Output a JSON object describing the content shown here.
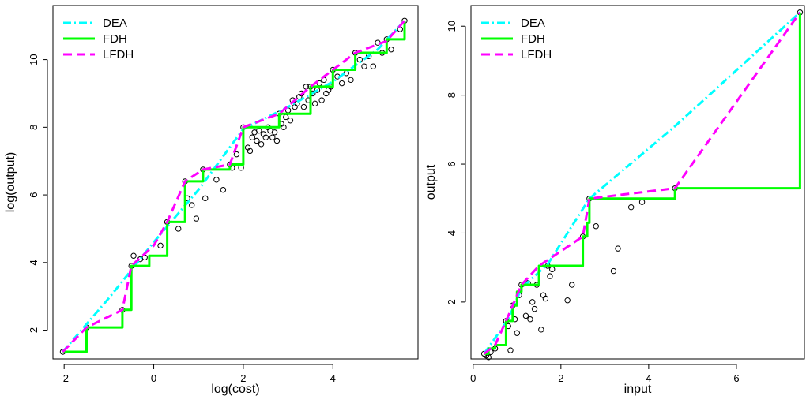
{
  "chart_data": [
    {
      "type": "line",
      "xlabel": "log(cost)",
      "ylabel": "log(output)",
      "xlim": [
        -2.25,
        5.9
      ],
      "ylim": [
        1.15,
        11.6
      ],
      "xticks": [
        "-2",
        "0",
        "2",
        "4"
      ],
      "yticks": [
        "2",
        "4",
        "6",
        "8",
        "10"
      ],
      "xtick_values": [
        -2,
        0,
        2,
        4
      ],
      "ytick_values": [
        2,
        4,
        6,
        8,
        10
      ],
      "legend": {
        "position": "top-left",
        "entries": [
          "DEA",
          "FDH",
          "LFDH"
        ]
      },
      "series": [
        {
          "name": "DEA",
          "color": "#00FFFF",
          "dash": "dotdash",
          "x": [
            -2.03,
            -1.0,
            0.0,
            1.0,
            2.0,
            3.0,
            4.0,
            5.0,
            5.6
          ],
          "y": [
            1.36,
            2.95,
            4.6,
            6.15,
            7.95,
            8.6,
            9.35,
            10.3,
            11.15
          ]
        },
        {
          "name": "FDH",
          "color": "#00FF00",
          "dash": "solid",
          "x": [
            -2.03,
            -1.5,
            -1.5,
            -0.7,
            -0.7,
            -0.5,
            -0.5,
            -0.1,
            -0.1,
            0.3,
            0.3,
            0.7,
            0.7,
            1.1,
            1.1,
            1.7,
            1.7,
            2.0,
            2.0,
            2.8,
            2.8,
            3.5,
            3.5,
            4.0,
            4.0,
            4.5,
            4.5,
            5.2,
            5.2,
            5.6,
            5.6
          ],
          "y": [
            1.36,
            1.36,
            2.08,
            2.08,
            2.6,
            2.6,
            3.9,
            3.9,
            4.2,
            4.2,
            5.2,
            5.2,
            6.4,
            6.4,
            6.75,
            6.75,
            6.9,
            6.9,
            8.0,
            8.0,
            8.4,
            8.4,
            9.2,
            9.2,
            9.7,
            9.7,
            10.2,
            10.2,
            10.6,
            10.6,
            11.15
          ]
        },
        {
          "name": "LFDH",
          "color": "#FF00FF",
          "dash": "dashed",
          "x": [
            -2.03,
            -1.5,
            -0.7,
            -0.5,
            0.0,
            0.3,
            0.7,
            1.1,
            1.7,
            2.0,
            2.8,
            3.5,
            4.0,
            4.5,
            5.2,
            5.6
          ],
          "y": [
            1.36,
            2.08,
            2.6,
            3.9,
            4.5,
            5.2,
            6.4,
            6.75,
            6.9,
            8.0,
            8.4,
            9.2,
            9.7,
            10.2,
            10.55,
            11.15
          ]
        }
      ],
      "points": {
        "x": [
          -2.03,
          -1.5,
          -0.7,
          -0.5,
          -0.45,
          -0.3,
          -0.2,
          0.15,
          0.3,
          0.55,
          0.7,
          0.75,
          0.85,
          0.95,
          1.1,
          1.15,
          1.4,
          1.55,
          1.7,
          1.75,
          1.85,
          1.95,
          2.0,
          2.1,
          2.15,
          2.2,
          2.25,
          2.3,
          2.35,
          2.4,
          2.45,
          2.5,
          2.55,
          2.6,
          2.65,
          2.7,
          2.75,
          2.8,
          2.85,
          2.9,
          2.95,
          3.0,
          3.05,
          3.1,
          3.15,
          3.2,
          3.25,
          3.3,
          3.35,
          3.4,
          3.45,
          3.5,
          3.55,
          3.6,
          3.65,
          3.7,
          3.75,
          3.8,
          3.85,
          3.9,
          3.95,
          4.0,
          4.1,
          4.2,
          4.3,
          4.4,
          4.5,
          4.6,
          4.7,
          4.8,
          4.9,
          5.0,
          5.1,
          5.2,
          5.3,
          5.5,
          5.6
        ],
        "y": [
          1.36,
          2.08,
          2.6,
          3.9,
          4.2,
          4.1,
          4.15,
          4.5,
          5.2,
          5.0,
          6.4,
          5.9,
          5.7,
          5.3,
          6.75,
          5.9,
          6.45,
          6.15,
          6.9,
          6.8,
          7.2,
          6.8,
          8.0,
          7.4,
          7.3,
          7.7,
          7.85,
          7.6,
          7.9,
          7.5,
          7.8,
          7.7,
          8.0,
          7.9,
          7.7,
          7.85,
          7.6,
          8.4,
          8.1,
          8.0,
          8.3,
          8.5,
          8.2,
          8.8,
          8.6,
          8.7,
          8.9,
          9.0,
          8.6,
          9.2,
          8.8,
          9.2,
          9.0,
          8.7,
          9.1,
          9.3,
          8.8,
          9.4,
          9.0,
          9.1,
          9.2,
          9.7,
          9.5,
          9.3,
          9.6,
          9.4,
          10.2,
          10.0,
          9.8,
          10.1,
          9.8,
          10.5,
          10.2,
          10.6,
          10.3,
          10.9,
          11.15
        ]
      }
    },
    {
      "type": "line",
      "xlabel": "input",
      "ylabel": "output",
      "xlim": [
        -0.05,
        7.55
      ],
      "ylim": [
        0.35,
        10.6
      ],
      "xticks": [
        "0",
        "2",
        "4",
        "6"
      ],
      "yticks": [
        "2",
        "4",
        "6",
        "8",
        "10"
      ],
      "xtick_values": [
        0,
        2,
        4,
        6
      ],
      "ytick_values": [
        2,
        4,
        6,
        8,
        10
      ],
      "legend": {
        "position": "top-left",
        "entries": [
          "DEA",
          "FDH",
          "LFDH"
        ]
      },
      "series": [
        {
          "name": "DEA",
          "color": "#00FFFF",
          "dash": "dotdash",
          "x": [
            0.25,
            0.8,
            1.1,
            1.7,
            2.65,
            4.6,
            7.45
          ],
          "y": [
            0.5,
            1.5,
            2.4,
            3.1,
            5.0,
            7.1,
            10.4
          ]
        },
        {
          "name": "FDH",
          "color": "#00FF00",
          "dash": "solid",
          "x": [
            0.25,
            0.35,
            0.35,
            0.5,
            0.5,
            0.75,
            0.75,
            0.9,
            0.9,
            1.0,
            1.0,
            1.1,
            1.1,
            1.5,
            1.5,
            2.5,
            2.5,
            2.6,
            2.6,
            2.65,
            2.65,
            4.6,
            4.6,
            7.45,
            7.45
          ],
          "y": [
            0.5,
            0.5,
            0.65,
            0.65,
            0.75,
            0.75,
            1.45,
            1.45,
            1.9,
            1.9,
            2.3,
            2.3,
            2.5,
            2.5,
            3.05,
            3.05,
            3.9,
            3.9,
            4.3,
            4.3,
            5.0,
            5.0,
            5.3,
            5.3,
            10.4
          ]
        },
        {
          "name": "LFDH",
          "color": "#FF00FF",
          "dash": "dashed",
          "x": [
            0.25,
            0.5,
            0.75,
            0.9,
            1.1,
            1.5,
            2.5,
            2.65,
            4.6,
            7.45
          ],
          "y": [
            0.5,
            0.75,
            1.45,
            1.9,
            2.5,
            3.05,
            3.9,
            5.0,
            5.3,
            10.4
          ]
        }
      ],
      "points": {
        "x": [
          0.25,
          0.3,
          0.35,
          0.4,
          0.5,
          0.75,
          0.8,
          0.85,
          0.9,
          0.95,
          1.0,
          1.05,
          1.1,
          1.2,
          1.25,
          1.3,
          1.35,
          1.4,
          1.45,
          1.55,
          1.6,
          1.65,
          1.7,
          1.75,
          1.8,
          2.15,
          2.25,
          2.5,
          2.65,
          2.8,
          3.2,
          3.3,
          3.6,
          3.85,
          4.6,
          7.45
        ],
        "y": [
          0.5,
          0.45,
          0.4,
          0.55,
          0.65,
          1.45,
          1.3,
          0.6,
          1.9,
          1.5,
          1.1,
          2.2,
          2.5,
          1.6,
          2.55,
          1.5,
          2.0,
          1.8,
          2.5,
          1.2,
          2.2,
          2.1,
          3.05,
          2.75,
          2.95,
          2.05,
          2.5,
          3.9,
          5.0,
          4.2,
          2.9,
          3.55,
          4.75,
          4.9,
          5.3,
          10.4
        ]
      }
    }
  ]
}
